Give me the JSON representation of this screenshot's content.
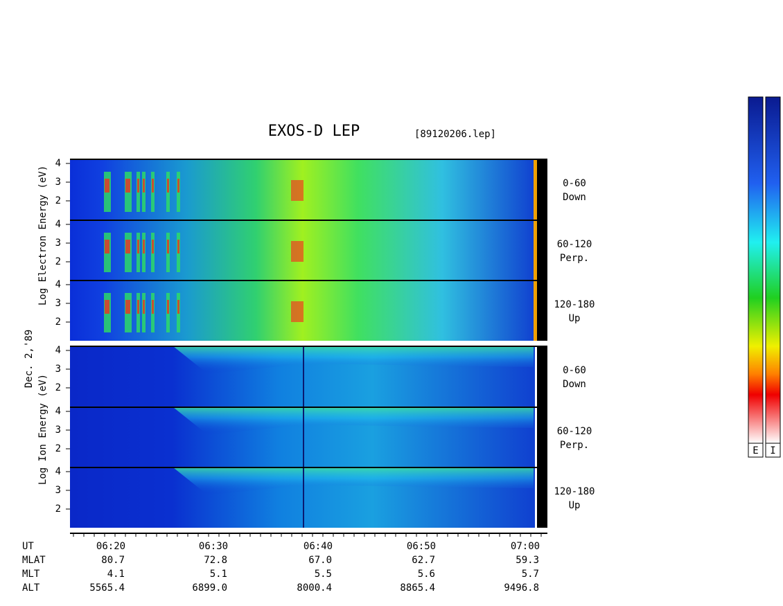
{
  "header": {
    "title": "EXOS-D LEP",
    "file": "[89120206.lep]"
  },
  "axis_labels": {
    "electron": "Log Electron Energy (eV)",
    "ion": "Log Ion Energy (eV)",
    "date": "Dec. 2,'89"
  },
  "panels": [
    {
      "range": "0-60",
      "direction": "Down",
      "ticks": [
        "4",
        "3",
        "2"
      ]
    },
    {
      "range": "60-120",
      "direction": "Perp.",
      "ticks": [
        "4",
        "3",
        "2"
      ]
    },
    {
      "range": "120-180",
      "direction": "Up",
      "ticks": [
        "4",
        "3",
        "2"
      ]
    },
    {
      "range": "0-60",
      "direction": "Down",
      "ticks": [
        "4",
        "3",
        "2"
      ]
    },
    {
      "range": "60-120",
      "direction": "Perp.",
      "ticks": [
        "4",
        "3",
        "2"
      ]
    },
    {
      "range": "120-180",
      "direction": "Up",
      "ticks": [
        "4",
        "3",
        "2"
      ]
    }
  ],
  "ephemeris": {
    "rows": [
      {
        "label": "UT",
        "values": [
          "06:20",
          "06:30",
          "06:40",
          "06:50",
          "07:00"
        ]
      },
      {
        "label": "MLAT",
        "values": [
          "80.7",
          "72.8",
          "67.0",
          "62.7",
          "59.3"
        ]
      },
      {
        "label": "MLT",
        "values": [
          "4.1",
          "5.1",
          "5.5",
          "5.6",
          "5.7"
        ]
      },
      {
        "label": "ALT",
        "values": [
          "5565.4",
          "6899.0",
          "8000.4",
          "8865.4",
          "9496.8"
        ]
      }
    ]
  },
  "colorbar": {
    "labels": [
      "E",
      "I"
    ]
  }
}
